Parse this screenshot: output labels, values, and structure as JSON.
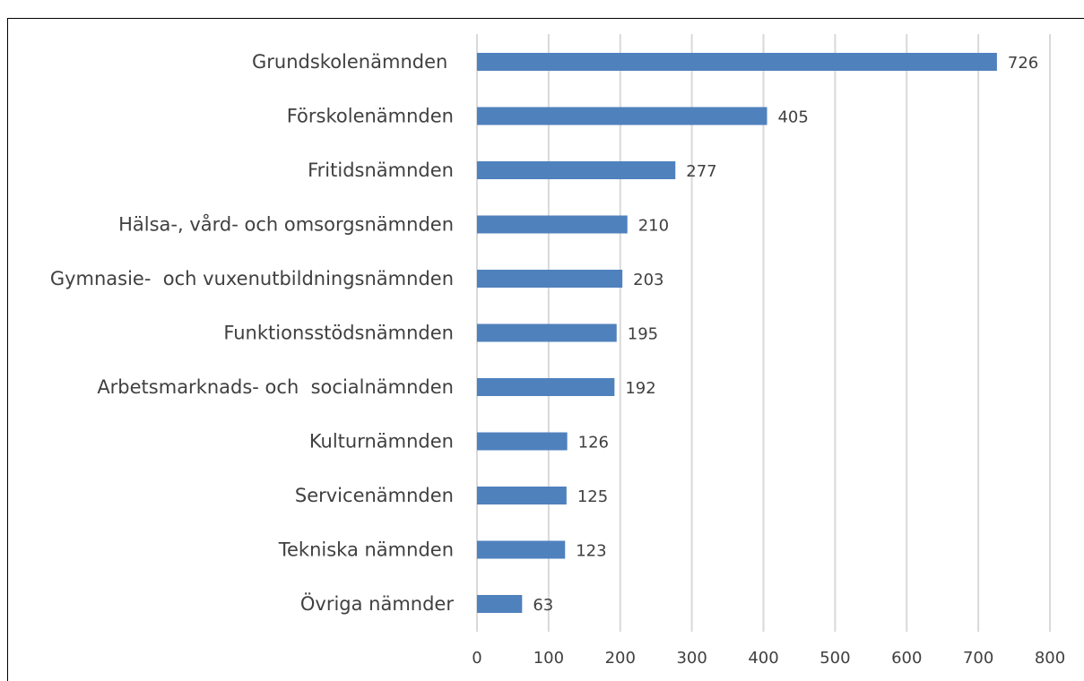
{
  "chart_data": {
    "type": "bar",
    "orientation": "horizontal",
    "categories": [
      "Grundskolenämnden ",
      "Förskolenämnden",
      "Fritidsnämnden",
      "Hälsa-, vård- och omsorgsnämnden",
      "Gymnasie-  och vuxenutbildningsnämnden",
      "Funktionsstödsnämnden",
      "Arbetsmarknads- och  socialnämnden",
      "Kulturnämnden",
      "Servicenämnden",
      "Tekniska nämnden",
      "Övriga nämnder"
    ],
    "values": [
      726,
      405,
      277,
      210,
      203,
      195,
      192,
      126,
      125,
      123,
      63
    ],
    "color": "#4f81bd",
    "xlim": [
      0,
      800
    ],
    "xticks": [
      0,
      100,
      200,
      300,
      400,
      500,
      600,
      700,
      800
    ],
    "grid": true
  }
}
